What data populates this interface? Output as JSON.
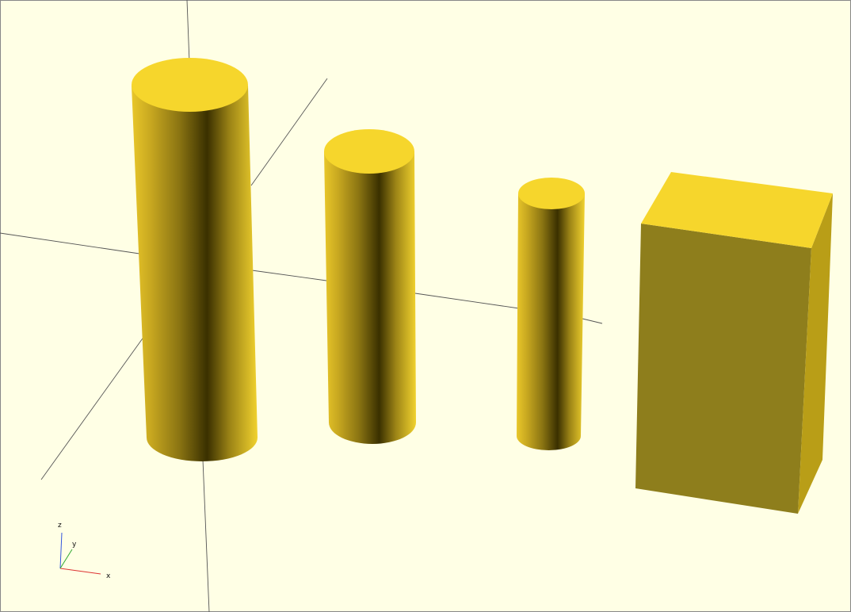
{
  "colors": {
    "background": "#ffffe5",
    "axis_line": "#555555",
    "top_face": "#f6d62c",
    "front_face": "#8e7e1c",
    "side_face": "#b99e17",
    "cylinder_light": "#f1d02c",
    "cylinder_mid": "#c9a922",
    "cylinder_dark": "#3a3000"
  },
  "axes_indicator": {
    "x_label": "x",
    "y_label": "y",
    "z_label": "z"
  }
}
